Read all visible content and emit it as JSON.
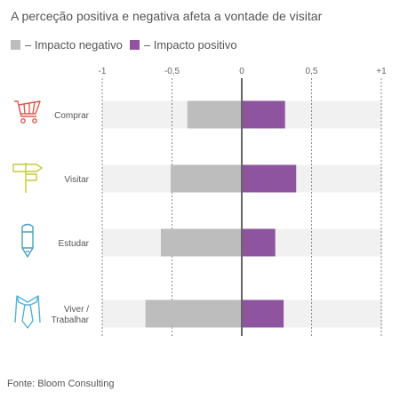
{
  "title": "A perceção positiva e negativa afeta a vontade de visitar",
  "legend": {
    "negative": {
      "label": "– Impacto negativo",
      "color": "#bdbdbd"
    },
    "positive": {
      "label": "– Impacto positivo",
      "color": "#8e54a0"
    }
  },
  "source": "Fonte: Bloom Consulting",
  "chart_data": {
    "type": "bar",
    "orientation": "horizontal",
    "diverging": true,
    "xlim": [
      -1,
      1
    ],
    "ticks": [
      {
        "value": -1,
        "label": "-1"
      },
      {
        "value": -0.5,
        "label": "-0,5"
      },
      {
        "value": 0,
        "label": "0"
      },
      {
        "value": 0.5,
        "label": "0,5"
      },
      {
        "value": 1,
        "label": "+1"
      }
    ],
    "categories": [
      {
        "lines": [
          "Comprar"
        ],
        "icon": "shopping-cart-icon",
        "icon_color": "#e05a4e"
      },
      {
        "lines": [
          "Visitar"
        ],
        "icon": "signpost-icon",
        "icon_color": "#c9c93a"
      },
      {
        "lines": [
          "Estudar"
        ],
        "icon": "pencil-icon",
        "icon_color": "#4a9fc4"
      },
      {
        "lines": [
          "Viver /",
          "Trabalhar"
        ],
        "icon": "necktie-icon",
        "icon_color": "#4fb4d8"
      }
    ],
    "series": [
      {
        "name": "– Impacto negativo",
        "color": "#bdbdbd",
        "values": [
          -0.39,
          -0.51,
          -0.58,
          -0.69
        ]
      },
      {
        "name": "– Impacto positivo",
        "color": "#8e54a0",
        "values": [
          0.31,
          0.39,
          0.24,
          0.3
        ]
      }
    ],
    "grid": "dashed vertical at ticks",
    "legend_position": "top-left"
  }
}
